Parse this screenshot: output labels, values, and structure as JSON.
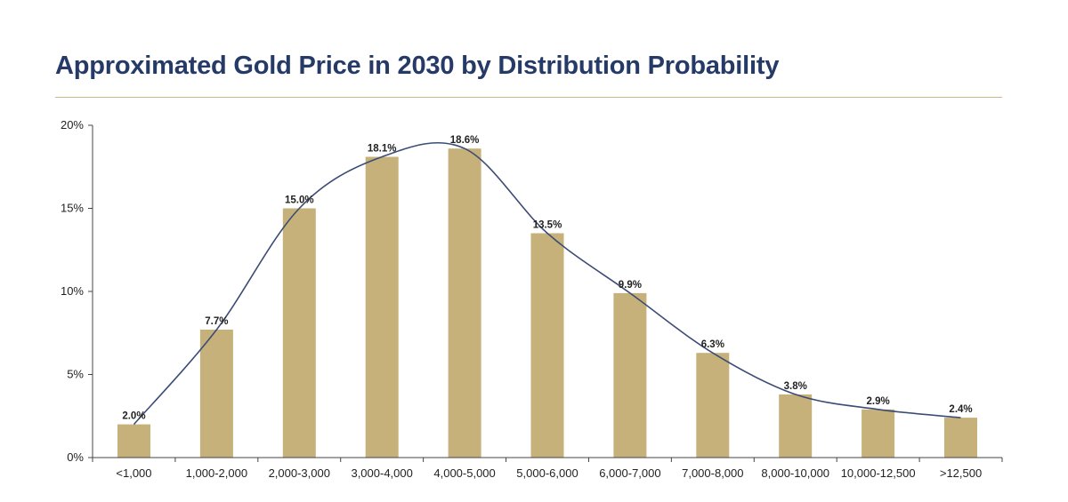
{
  "title": "Approximated Gold Price in 2030 by Distribution Probability",
  "colors": {
    "title": "#253a66",
    "bar": "#c6b17a",
    "curve": "#3b4c75",
    "axis": "#444444",
    "rule": "#cdb98c"
  },
  "chart_data": {
    "type": "bar",
    "title": "Approximated Gold Price in 2030 by Distribution Probability",
    "xlabel": "",
    "ylabel": "",
    "categories": [
      "<1,000",
      "1,000-2,000",
      "2,000-3,000",
      "3,000-4,000",
      "4,000-5,000",
      "5,000-6,000",
      "6,000-7,000",
      "7,000-8,000",
      "8,000-10,000",
      "10,000-12,500",
      ">12,500"
    ],
    "values": [
      2.0,
      7.7,
      15.0,
      18.1,
      18.6,
      13.5,
      9.9,
      6.3,
      3.8,
      2.9,
      2.4
    ],
    "data_labels": [
      "2.0%",
      "7.7%",
      "15.0%",
      "18.1%",
      "18.6%",
      "13.5%",
      "9.9%",
      "6.3%",
      "3.8%",
      "2.9%",
      "2.4%"
    ],
    "overlay": "smoothed distribution curve through bar tops",
    "ylim": [
      0,
      20
    ],
    "yticks": [
      0,
      5,
      10,
      15,
      20
    ],
    "ytick_labels": [
      "0%",
      "5%",
      "10%",
      "15%",
      "20%"
    ],
    "grid": false,
    "legend": "none"
  }
}
